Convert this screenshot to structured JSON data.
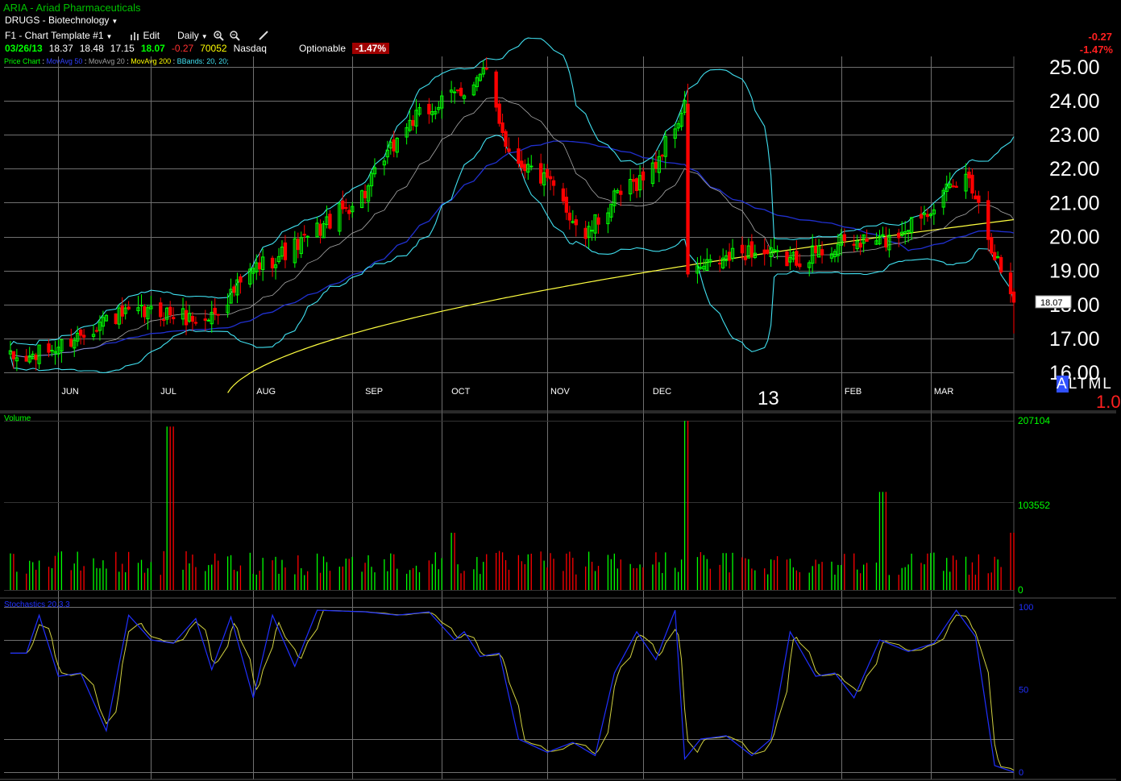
{
  "header": {
    "title": "ARIA - Ariad Pharmaceuticals",
    "sector": "DRUGS - Biotechnology",
    "template_label": "F1 - Chart Template #1",
    "edit_label": "Edit",
    "period_label": "Daily"
  },
  "quote": {
    "date": "03/26/13",
    "open": "18.37",
    "high": "18.48",
    "low": "17.15",
    "last": "18.07",
    "change": "-0.27",
    "volume": "70052",
    "exchange": "Nasdaq",
    "optionable": "Optionable",
    "pct": "-1.47%"
  },
  "right_panel": {
    "change": "-0.27",
    "pct": "-1.47%",
    "altml": [
      "A",
      "L",
      "T",
      "M",
      "L"
    ],
    "altml_value": "1.0",
    "year_label": "13"
  },
  "legend": [
    {
      "text": "Price Chart",
      "color": "#00ff00"
    },
    {
      "text": "MovAvg 50",
      "color": "#3040ff"
    },
    {
      "text": "MovAvg 20",
      "color": "#a0a0a0"
    },
    {
      "text": "MovAvg 200",
      "color": "#ffff00"
    },
    {
      "text": "BBands: 20, 20;",
      "color": "#40e0f0"
    }
  ],
  "panels": {
    "volume_label": "Volume",
    "stochastics_label": "Stochastics 20,3,3"
  },
  "colors": {
    "up": "#00ff00",
    "down": "#ff0000",
    "ma50": "#2030d0",
    "ma20": "#a8a8a8",
    "ma200": "#ffff40",
    "bbands": "#40e0f0",
    "stoch_k": "#2030ff",
    "stoch_d": "#d0d040",
    "grid": "#707070"
  },
  "chart_data": {
    "type": "candlestick",
    "price_axis": {
      "ticks": [
        "25.00",
        "24.00",
        "23.00",
        "22.00",
        "21.00",
        "20.00",
        "19.00",
        "18.00",
        "17.00",
        "16.00"
      ],
      "ylim": [
        15.5,
        25.4
      ]
    },
    "x_ticks": [
      "JUN",
      "JUL",
      "AUG",
      "SEP",
      "OCT",
      "NOV",
      "DEC",
      "13",
      "FEB",
      "MAR"
    ],
    "last_price_label": "18.07",
    "price_anchors": {
      "dates": [
        "2012-05-21",
        "2012-06-01",
        "2012-06-15",
        "2012-07-02",
        "2012-07-16",
        "2012-08-01",
        "2012-08-15",
        "2012-09-04",
        "2012-09-17",
        "2012-10-01",
        "2012-10-12",
        "2012-10-19",
        "2012-11-01",
        "2012-11-12",
        "2012-11-20",
        "2012-12-03",
        "2012-12-13",
        "2012-12-14",
        "2013-01-02",
        "2013-01-15",
        "2013-02-01",
        "2013-02-15",
        "2013-03-01",
        "2013-03-12",
        "2013-03-20",
        "2013-03-26"
      ],
      "close": [
        16.4,
        16.8,
        17.6,
        17.8,
        17.5,
        19.1,
        19.8,
        21.3,
        23.3,
        24.1,
        24.8,
        22.5,
        21.5,
        20.0,
        21.0,
        22.0,
        23.8,
        18.9,
        19.6,
        19.3,
        19.8,
        19.9,
        21.0,
        21.8,
        19.5,
        18.07
      ]
    },
    "ma200_endpoints": {
      "start": 15.2,
      "end": 20.5
    },
    "volume": {
      "axis_ticks": [
        "207104",
        "103552",
        "0"
      ],
      "ymax": 207104,
      "spikes": [
        {
          "date": "2012-07-05",
          "value": 200000
        },
        {
          "date": "2012-10-01",
          "value": 70000
        },
        {
          "date": "2012-12-14",
          "value": 207104
        },
        {
          "date": "2013-02-13",
          "value": 120000
        },
        {
          "date": "2013-03-26",
          "value": 70052
        }
      ]
    },
    "stochastics": {
      "axis_ticks": [
        "100",
        "50",
        "0"
      ],
      "ylim": [
        0,
        100
      ],
      "k_anchors": {
        "dates": [
          "2012-05-21",
          "2012-05-25",
          "2012-05-31",
          "2012-06-07",
          "2012-06-15",
          "2012-06-22",
          "2012-06-29",
          "2012-07-06",
          "2012-07-13",
          "2012-07-18",
          "2012-07-24",
          "2012-07-31",
          "2012-08-06",
          "2012-08-13",
          "2012-08-20",
          "2012-09-04",
          "2012-09-14",
          "2012-09-24",
          "2012-10-02",
          "2012-10-05",
          "2012-10-10",
          "2012-10-16",
          "2012-10-22",
          "2012-10-31",
          "2012-11-08",
          "2012-11-15",
          "2012-11-21",
          "2012-11-28",
          "2012-12-04",
          "2012-12-10",
          "2012-12-13",
          "2012-12-18",
          "2012-12-26",
          "2013-01-03",
          "2013-01-09",
          "2013-01-15",
          "2013-01-23",
          "2013-01-29",
          "2013-02-04",
          "2013-02-12",
          "2013-02-21",
          "2013-03-01",
          "2013-03-08",
          "2013-03-14",
          "2013-03-20",
          "2013-03-26"
        ],
        "values": [
          72,
          95,
          58,
          60,
          25,
          95,
          80,
          78,
          93,
          62,
          94,
          45,
          95,
          64,
          98,
          97,
          95,
          97,
          80,
          85,
          70,
          72,
          20,
          12,
          18,
          10,
          60,
          85,
          68,
          98,
          8,
          20,
          22,
          10,
          20,
          85,
          58,
          60,
          45,
          80,
          73,
          78,
          98,
          82,
          4,
          0
        ]
      }
    }
  }
}
